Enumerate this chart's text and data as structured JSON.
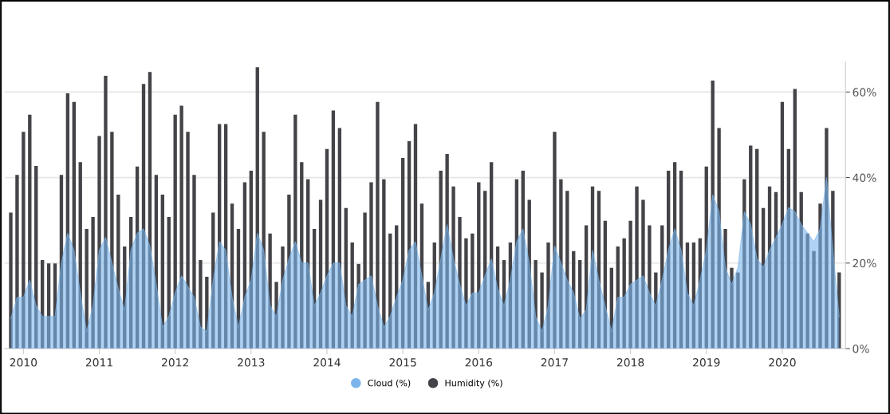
{
  "chart_data": {
    "type": "bar",
    "categories": [
      null,
      null,
      "2010",
      null,
      null,
      null,
      null,
      null,
      null,
      null,
      null,
      null,
      null,
      null,
      "2011",
      null,
      null,
      null,
      null,
      null,
      null,
      null,
      null,
      null,
      null,
      null,
      "2012",
      null,
      null,
      null,
      null,
      null,
      null,
      null,
      null,
      null,
      null,
      null,
      "2013",
      null,
      null,
      null,
      null,
      null,
      null,
      null,
      null,
      null,
      null,
      null,
      "2014",
      null,
      null,
      null,
      null,
      null,
      null,
      null,
      null,
      null,
      null,
      null,
      "2015",
      null,
      null,
      null,
      null,
      null,
      null,
      null,
      null,
      null,
      null,
      null,
      "2016",
      null,
      null,
      null,
      null,
      null,
      null,
      null,
      null,
      null,
      null,
      null,
      "2017",
      null,
      null,
      null,
      null,
      null,
      null,
      null,
      null,
      null,
      null,
      null,
      "2018",
      null,
      null,
      null,
      null,
      null,
      null,
      null,
      null,
      null,
      null,
      null,
      "2019",
      null,
      null,
      null,
      null,
      null,
      null,
      null,
      null,
      null,
      null,
      null,
      "2020",
      null,
      null,
      null,
      null,
      null,
      null,
      null,
      null,
      null
    ],
    "series": [
      {
        "name": "Cloud (%)",
        "type": "area",
        "color": "#7cb5ec",
        "values": [
          7,
          12,
          12,
          16,
          10,
          7.5,
          7.5,
          7.5,
          20,
          27,
          23,
          13,
          4,
          10,
          23,
          26,
          20,
          14,
          9,
          23,
          27,
          28,
          24,
          15,
          5,
          7.5,
          13,
          17,
          14.5,
          12,
          5,
          4,
          16,
          25,
          23,
          12,
          5,
          12,
          16,
          27,
          23,
          10,
          7.5,
          16,
          21,
          25,
          20,
          20,
          10,
          13,
          17,
          20,
          20,
          10,
          7.5,
          15,
          16,
          17,
          10,
          5,
          7.5,
          12,
          16,
          23,
          25,
          17,
          9,
          13,
          21,
          29,
          21,
          15,
          10,
          13,
          13,
          17,
          21,
          14,
          10,
          16,
          25,
          28,
          20,
          7.5,
          4,
          10,
          24,
          20,
          16,
          13,
          7,
          9,
          23,
          16,
          10,
          4,
          12,
          12,
          15,
          16,
          17,
          13,
          10,
          16,
          23,
          28,
          23,
          13,
          10,
          16,
          23,
          36,
          32,
          19,
          15,
          19,
          32,
          29,
          21,
          19,
          23,
          26,
          29,
          33,
          32,
          29,
          27,
          25,
          28,
          40,
          23,
          7.5
        ]
      },
      {
        "name": "Humidity (%)",
        "color": "#434348",
        "values": [
          31.8,
          40.6,
          50.7,
          54.7,
          42.7,
          20.7,
          19.9,
          19.9,
          40.6,
          59.7,
          57.7,
          43.6,
          28,
          30.8,
          49.7,
          63.8,
          50.7,
          36,
          23.9,
          30.8,
          42.6,
          61.9,
          64.7,
          40.6,
          36,
          30.8,
          54.7,
          56.8,
          50.7,
          40.6,
          20.7,
          16.8,
          31.8,
          52.5,
          52.5,
          33.9,
          28,
          38.9,
          41.6,
          65.8,
          50.7,
          26.9,
          15.6,
          23.9,
          36,
          54.7,
          43.6,
          39.6,
          28,
          34.8,
          46.7,
          55.7,
          51.6,
          32.9,
          24.8,
          19.8,
          31.8,
          38.9,
          57.7,
          39.6,
          26.9,
          28.8,
          44.6,
          48.5,
          52.5,
          33.9,
          15.6,
          24.8,
          41.6,
          45.5,
          37.9,
          30.8,
          25.8,
          26.9,
          38.9,
          36.9,
          43.6,
          23.9,
          20.7,
          24.8,
          39.6,
          41.6,
          34.8,
          20.7,
          17.8,
          24.8,
          50.7,
          39.6,
          36.9,
          22.8,
          20.7,
          28.8,
          37.9,
          36.9,
          29.9,
          18.9,
          23.9,
          25.8,
          29.9,
          37.9,
          34.8,
          28.8,
          17.8,
          28.8,
          41.6,
          43.6,
          41.6,
          24.8,
          24.8,
          25.8,
          42.6,
          62.7,
          51.6,
          28,
          18.9,
          17.8,
          39.6,
          47.5,
          46.7,
          32.9,
          37.9,
          36.6,
          57.7,
          46.7,
          60.7,
          36.6,
          26.9,
          22.8,
          33.9,
          51.6,
          36.9,
          17.8
        ]
      }
    ],
    "ylim": [
      0,
      67
    ],
    "yticks": [
      {
        "value": 0,
        "label": "0%"
      },
      {
        "value": 20,
        "label": "20%"
      },
      {
        "value": 40,
        "label": "40%"
      },
      {
        "value": 60,
        "label": "60%"
      }
    ],
    "grid": "y",
    "legend": "bottom"
  }
}
